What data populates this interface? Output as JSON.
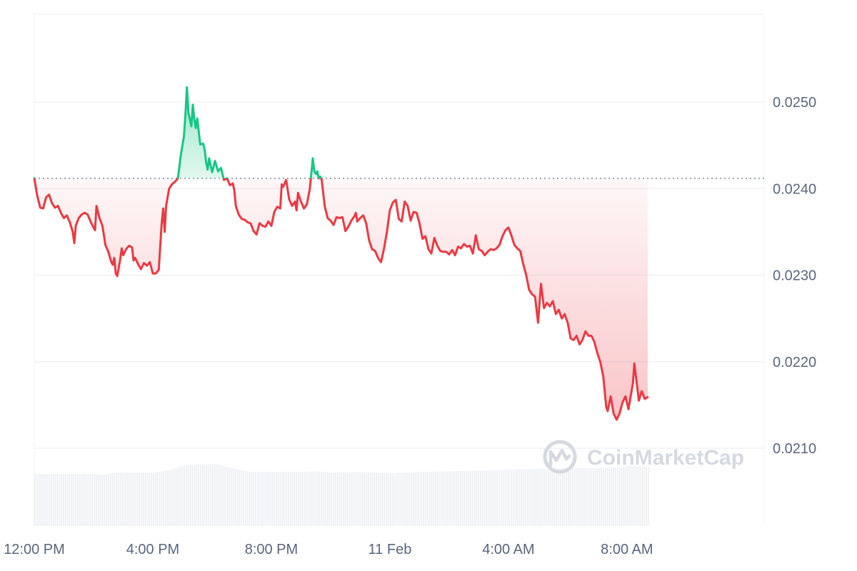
{
  "chart_data": {
    "type": "area",
    "watermark": "CoinMarketCap",
    "colors": {
      "up": "#16c784",
      "down": "#ea3943",
      "volume": "#eef0f4",
      "grid": "#eff2f5",
      "baseline": "#808a9d"
    },
    "baseline": 0.02412,
    "ylim": [
      0.0201,
      0.026
    ],
    "y_ticks": [
      {
        "label": "0.0250",
        "value": 0.025
      },
      {
        "label": "0.0240",
        "value": 0.024
      },
      {
        "label": "0.0230",
        "value": 0.023
      },
      {
        "label": "0.0220",
        "value": 0.022
      },
      {
        "label": "0.0210",
        "value": 0.021
      }
    ],
    "x_ticks": [
      {
        "label": "12:00 PM",
        "hour": 0
      },
      {
        "label": "4:00 PM",
        "hour": 4
      },
      {
        "label": "8:00 PM",
        "hour": 8
      },
      {
        "label": "11 Feb",
        "hour": 12
      },
      {
        "label": "4:00 AM",
        "hour": 16
      },
      {
        "label": "8:00 AM",
        "hour": 20
      }
    ],
    "xlim_hours": [
      0,
      24.1
    ],
    "price_series": [
      [
        0,
        0.02412
      ],
      [
        0.1,
        0.02392
      ],
      [
        0.2,
        0.02378
      ],
      [
        0.3,
        0.02377
      ],
      [
        0.4,
        0.0239
      ],
      [
        0.5,
        0.02393
      ],
      [
        0.6,
        0.02383
      ],
      [
        0.7,
        0.02378
      ],
      [
        0.8,
        0.0238
      ],
      [
        0.9,
        0.02372
      ],
      [
        1.0,
        0.02366
      ],
      [
        1.1,
        0.02369
      ],
      [
        1.2,
        0.02361
      ],
      [
        1.3,
        0.0235
      ],
      [
        1.35,
        0.02337
      ],
      [
        1.4,
        0.02357
      ],
      [
        1.5,
        0.02366
      ],
      [
        1.6,
        0.0237
      ],
      [
        1.7,
        0.02372
      ],
      [
        1.8,
        0.0237
      ],
      [
        1.9,
        0.02362
      ],
      [
        2.0,
        0.02355
      ],
      [
        2.05,
        0.02352
      ],
      [
        2.1,
        0.0238
      ],
      [
        2.2,
        0.02366
      ],
      [
        2.3,
        0.02357
      ],
      [
        2.4,
        0.02335
      ],
      [
        2.5,
        0.02327
      ],
      [
        2.6,
        0.02315
      ],
      [
        2.65,
        0.02312
      ],
      [
        2.7,
        0.0232
      ],
      [
        2.75,
        0.02302
      ],
      [
        2.8,
        0.02299
      ],
      [
        2.9,
        0.02318
      ],
      [
        2.95,
        0.02331
      ],
      [
        3.0,
        0.02323
      ],
      [
        3.1,
        0.0233
      ],
      [
        3.2,
        0.02334
      ],
      [
        3.3,
        0.02332
      ],
      [
        3.35,
        0.02317
      ],
      [
        3.4,
        0.0232
      ],
      [
        3.5,
        0.02313
      ],
      [
        3.6,
        0.02307
      ],
      [
        3.7,
        0.02314
      ],
      [
        3.8,
        0.02311
      ],
      [
        3.9,
        0.02315
      ],
      [
        4.0,
        0.02302
      ],
      [
        4.1,
        0.02302
      ],
      [
        4.2,
        0.02306
      ],
      [
        4.3,
        0.0236
      ],
      [
        4.35,
        0.02377
      ],
      [
        4.4,
        0.0235
      ],
      [
        4.45,
        0.0238
      ],
      [
        4.55,
        0.024
      ],
      [
        4.65,
        0.02405
      ],
      [
        4.75,
        0.02408
      ],
      [
        4.85,
        0.02412
      ],
      [
        4.95,
        0.0244
      ],
      [
        5.05,
        0.0246
      ],
      [
        5.1,
        0.02485
      ],
      [
        5.15,
        0.02517
      ],
      [
        5.2,
        0.02488
      ],
      [
        5.3,
        0.02472
      ],
      [
        5.35,
        0.02497
      ],
      [
        5.4,
        0.0248
      ],
      [
        5.45,
        0.0247
      ],
      [
        5.5,
        0.02481
      ],
      [
        5.6,
        0.02451
      ],
      [
        5.7,
        0.02452
      ],
      [
        5.75,
        0.02445
      ],
      [
        5.8,
        0.0243
      ],
      [
        5.85,
        0.02422
      ],
      [
        5.9,
        0.02435
      ],
      [
        6.0,
        0.02419
      ],
      [
        6.1,
        0.02432
      ],
      [
        6.2,
        0.0242
      ],
      [
        6.3,
        0.02424
      ],
      [
        6.4,
        0.0241
      ],
      [
        6.5,
        0.02412
      ],
      [
        6.6,
        0.02404
      ],
      [
        6.7,
        0.02406
      ],
      [
        6.75,
        0.02398
      ],
      [
        6.8,
        0.0238
      ],
      [
        6.9,
        0.0237
      ],
      [
        7.0,
        0.02365
      ],
      [
        7.1,
        0.02364
      ],
      [
        7.2,
        0.02361
      ],
      [
        7.3,
        0.0236
      ],
      [
        7.4,
        0.02351
      ],
      [
        7.5,
        0.02347
      ],
      [
        7.6,
        0.0236
      ],
      [
        7.7,
        0.02357
      ],
      [
        7.8,
        0.02356
      ],
      [
        7.9,
        0.02362
      ],
      [
        8.0,
        0.02357
      ],
      [
        8.1,
        0.02373
      ],
      [
        8.2,
        0.02379
      ],
      [
        8.3,
        0.02377
      ],
      [
        8.35,
        0.02405
      ],
      [
        8.4,
        0.02402
      ],
      [
        8.5,
        0.0241
      ],
      [
        8.6,
        0.02388
      ],
      [
        8.7,
        0.0238
      ],
      [
        8.8,
        0.02385
      ],
      [
        8.85,
        0.02375
      ],
      [
        8.9,
        0.02395
      ],
      [
        9.0,
        0.02385
      ],
      [
        9.1,
        0.02377
      ],
      [
        9.2,
        0.02382
      ],
      [
        9.3,
        0.024
      ],
      [
        9.4,
        0.02435
      ],
      [
        9.45,
        0.0242
      ],
      [
        9.5,
        0.02417
      ],
      [
        9.55,
        0.0242
      ],
      [
        9.6,
        0.02412
      ],
      [
        9.65,
        0.02414
      ],
      [
        9.7,
        0.0241
      ],
      [
        9.8,
        0.0238
      ],
      [
        9.9,
        0.02366
      ],
      [
        10.0,
        0.02363
      ],
      [
        10.1,
        0.02358
      ],
      [
        10.2,
        0.02367
      ],
      [
        10.3,
        0.02366
      ],
      [
        10.4,
        0.02367
      ],
      [
        10.5,
        0.02351
      ],
      [
        10.6,
        0.02356
      ],
      [
        10.7,
        0.02363
      ],
      [
        10.8,
        0.02368
      ],
      [
        10.85,
        0.02372
      ],
      [
        10.9,
        0.02362
      ],
      [
        11.0,
        0.02366
      ],
      [
        11.1,
        0.02369
      ],
      [
        11.2,
        0.0236
      ],
      [
        11.3,
        0.0234
      ],
      [
        11.4,
        0.0233
      ],
      [
        11.5,
        0.02328
      ],
      [
        11.6,
        0.0232
      ],
      [
        11.7,
        0.02315
      ],
      [
        11.8,
        0.0233
      ],
      [
        11.9,
        0.0235
      ],
      [
        12.0,
        0.02375
      ],
      [
        12.1,
        0.02384
      ],
      [
        12.2,
        0.02387
      ],
      [
        12.3,
        0.02365
      ],
      [
        12.4,
        0.02362
      ],
      [
        12.5,
        0.02385
      ],
      [
        12.6,
        0.0238
      ],
      [
        12.7,
        0.02363
      ],
      [
        12.8,
        0.02373
      ],
      [
        12.9,
        0.02372
      ],
      [
        13.0,
        0.0236
      ],
      [
        13.1,
        0.02342
      ],
      [
        13.2,
        0.02345
      ],
      [
        13.3,
        0.0233
      ],
      [
        13.4,
        0.02325
      ],
      [
        13.5,
        0.02343
      ],
      [
        13.6,
        0.02334
      ],
      [
        13.7,
        0.02328
      ],
      [
        13.8,
        0.02327
      ],
      [
        13.9,
        0.02327
      ],
      [
        14.0,
        0.02324
      ],
      [
        14.1,
        0.02329
      ],
      [
        14.2,
        0.02323
      ],
      [
        14.3,
        0.02333
      ],
      [
        14.4,
        0.02331
      ],
      [
        14.5,
        0.02336
      ],
      [
        14.6,
        0.02333
      ],
      [
        14.7,
        0.02334
      ],
      [
        14.8,
        0.02325
      ],
      [
        14.9,
        0.02346
      ],
      [
        15.0,
        0.0233
      ],
      [
        15.1,
        0.02328
      ],
      [
        15.2,
        0.02323
      ],
      [
        15.3,
        0.02327
      ],
      [
        15.4,
        0.0233
      ],
      [
        15.5,
        0.02329
      ],
      [
        15.6,
        0.02331
      ],
      [
        15.7,
        0.02335
      ],
      [
        15.8,
        0.02345
      ],
      [
        15.9,
        0.02352
      ],
      [
        16.0,
        0.02355
      ],
      [
        16.1,
        0.02346
      ],
      [
        16.2,
        0.02335
      ],
      [
        16.3,
        0.02331
      ],
      [
        16.4,
        0.02328
      ],
      [
        16.5,
        0.02313
      ],
      [
        16.6,
        0.023
      ],
      [
        16.7,
        0.02283
      ],
      [
        16.8,
        0.02278
      ],
      [
        16.9,
        0.02275
      ],
      [
        16.95,
        0.0226
      ],
      [
        17.0,
        0.02245
      ],
      [
        17.1,
        0.0229
      ],
      [
        17.2,
        0.02262
      ],
      [
        17.3,
        0.02268
      ],
      [
        17.4,
        0.02264
      ],
      [
        17.5,
        0.0227
      ],
      [
        17.6,
        0.02255
      ],
      [
        17.7,
        0.0226
      ],
      [
        17.8,
        0.0225
      ],
      [
        17.9,
        0.02255
      ],
      [
        18.0,
        0.02245
      ],
      [
        18.1,
        0.02227
      ],
      [
        18.2,
        0.02225
      ],
      [
        18.3,
        0.0223
      ],
      [
        18.4,
        0.0222
      ],
      [
        18.5,
        0.02225
      ],
      [
        18.6,
        0.02235
      ],
      [
        18.7,
        0.0223
      ],
      [
        18.8,
        0.0223
      ],
      [
        18.9,
        0.02223
      ],
      [
        19.0,
        0.0221
      ],
      [
        19.1,
        0.022
      ],
      [
        19.2,
        0.02183
      ],
      [
        19.3,
        0.02148
      ],
      [
        19.35,
        0.02143
      ],
      [
        19.45,
        0.0216
      ],
      [
        19.55,
        0.0214
      ],
      [
        19.65,
        0.02133
      ],
      [
        19.75,
        0.0214
      ],
      [
        19.85,
        0.02153
      ],
      [
        19.95,
        0.0216
      ],
      [
        20.05,
        0.02145
      ],
      [
        20.15,
        0.02165
      ],
      [
        20.2,
        0.02175
      ],
      [
        20.25,
        0.02198
      ],
      [
        20.35,
        0.0217
      ],
      [
        20.4,
        0.02155
      ],
      [
        20.5,
        0.02166
      ],
      [
        20.6,
        0.02157
      ],
      [
        20.7,
        0.02159
      ]
    ],
    "volume_series": [
      [
        0,
        0.38
      ],
      [
        2.0,
        0.38
      ],
      [
        2.3,
        0.37
      ],
      [
        2.7,
        0.4
      ],
      [
        3.0,
        0.4
      ],
      [
        4.0,
        0.4
      ],
      [
        4.3,
        0.42
      ],
      [
        4.6,
        0.44
      ],
      [
        5.0,
        0.5
      ],
      [
        5.5,
        0.52
      ],
      [
        6.2,
        0.52
      ],
      [
        6.5,
        0.48
      ],
      [
        6.9,
        0.44
      ],
      [
        7.3,
        0.41
      ],
      [
        8.0,
        0.41
      ],
      [
        9.0,
        0.41
      ],
      [
        9.5,
        0.42
      ],
      [
        10.0,
        0.4
      ],
      [
        11.0,
        0.41
      ],
      [
        12.0,
        0.39
      ],
      [
        13.0,
        0.41
      ],
      [
        14.0,
        0.42
      ],
      [
        15.0,
        0.43
      ],
      [
        16.0,
        0.44
      ],
      [
        17.0,
        0.45
      ],
      [
        18.0,
        0.46
      ],
      [
        19.0,
        0.47
      ],
      [
        19.5,
        0.47
      ],
      [
        20.0,
        0.49
      ],
      [
        20.7,
        0.49
      ]
    ]
  }
}
